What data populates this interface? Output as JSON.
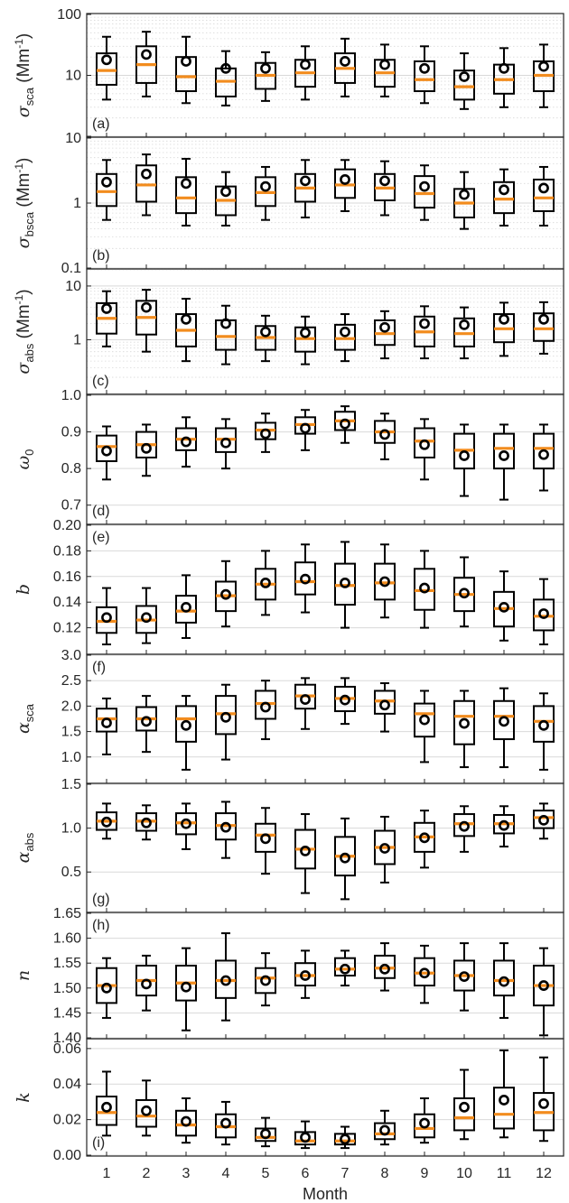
{
  "chart_data": {
    "type": "box",
    "xlabel": "Month",
    "x": [
      1,
      2,
      3,
      4,
      5,
      6,
      7,
      8,
      9,
      10,
      11,
      12
    ],
    "colors": {
      "median": "#f28c1e",
      "box": "#000000",
      "grid": "#d9d9d9"
    },
    "panels": [
      {
        "label": "(a)",
        "ylabel": "σsca (Mm-1)",
        "ylabel_main": "σ",
        "ylabel_sub": "sca",
        "ylabel_unit": " (Mm",
        "ylabel_sup": "-1",
        "ylabel_close": ")",
        "scale": "log",
        "ylim": [
          1,
          100
        ],
        "yticks": [
          1,
          10,
          100
        ],
        "ytick_labels": [
          "",
          "10",
          "100"
        ],
        "whisker_low": [
          4,
          4.5,
          3.5,
          3.2,
          3.8,
          4,
          4.5,
          4.5,
          3.5,
          2.8,
          3,
          3
        ],
        "q1": [
          7,
          7.5,
          5.5,
          4.5,
          6,
          6.5,
          7.5,
          6.5,
          5.5,
          4,
          5,
          5.5
        ],
        "median": [
          12,
          15,
          9.5,
          8,
          10,
          11,
          13,
          11,
          8.5,
          6.5,
          8.5,
          10
        ],
        "q3": [
          23,
          30,
          20,
          13,
          16,
          18,
          23,
          18,
          17,
          12,
          15,
          17
        ],
        "whisker_high": [
          43,
          52,
          43,
          25,
          24,
          30,
          40,
          32,
          30,
          23,
          28,
          32
        ],
        "mean": [
          18,
          22,
          17,
          13,
          13,
          15,
          17,
          15,
          13,
          9.5,
          13,
          14
        ]
      },
      {
        "label": "(b)",
        "ylabel": "σbsca (Mm-1)",
        "ylabel_main": "σ",
        "ylabel_sub": "bsca",
        "ylabel_unit": " (Mm",
        "ylabel_sup": "-1",
        "ylabel_close": ")",
        "scale": "log",
        "ylim": [
          0.1,
          10
        ],
        "yticks": [
          0.1,
          1,
          10
        ],
        "ytick_labels": [
          "0.1",
          "1",
          "10"
        ],
        "whisker_low": [
          0.55,
          0.65,
          0.45,
          0.45,
          0.55,
          0.6,
          0.75,
          0.65,
          0.55,
          0.4,
          0.45,
          0.45
        ],
        "q1": [
          0.9,
          1.05,
          0.7,
          0.65,
          0.9,
          1.05,
          1.2,
          1.1,
          0.85,
          0.6,
          0.7,
          0.75
        ],
        "median": [
          1.5,
          1.9,
          1.2,
          1.1,
          1.45,
          1.7,
          1.9,
          1.7,
          1.4,
          1.0,
          1.15,
          1.2
        ],
        "q3": [
          2.8,
          3.8,
          2.5,
          1.8,
          2.5,
          2.8,
          3.3,
          2.8,
          2.6,
          1.65,
          2.1,
          2.3
        ],
        "whisker_high": [
          4.6,
          5.6,
          4.8,
          3.0,
          3.6,
          4.6,
          4.6,
          4.4,
          3.8,
          3.0,
          3.3,
          3.6
        ],
        "mean": [
          2.1,
          2.8,
          2.0,
          1.5,
          1.8,
          2.2,
          2.3,
          2.2,
          1.8,
          1.35,
          1.6,
          1.7
        ]
      },
      {
        "label": "(c)",
        "ylabel": "σabs (Mm-1)",
        "ylabel_main": "σ",
        "ylabel_sub": "abs",
        "ylabel_unit": " (Mm",
        "ylabel_sup": "-1",
        "ylabel_close": ")",
        "scale": "log",
        "ylim": [
          0.1,
          20
        ],
        "yticks": [
          1,
          10
        ],
        "ytick_labels": [
          "1",
          "10"
        ],
        "whisker_low": [
          0.75,
          0.6,
          0.4,
          0.35,
          0.4,
          0.35,
          0.4,
          0.45,
          0.45,
          0.45,
          0.5,
          0.55
        ],
        "q1": [
          1.3,
          1.25,
          0.75,
          0.65,
          0.65,
          0.6,
          0.65,
          0.8,
          0.75,
          0.75,
          0.9,
          0.95
        ],
        "median": [
          2.5,
          2.6,
          1.5,
          1.15,
          1.1,
          1.05,
          1.05,
          1.3,
          1.4,
          1.3,
          1.6,
          1.6
        ],
        "q3": [
          4.8,
          5.3,
          3.0,
          2.3,
          1.8,
          1.7,
          1.9,
          2.3,
          2.7,
          2.5,
          3.0,
          3.1
        ],
        "whisker_high": [
          8.0,
          8.5,
          5.8,
          4.3,
          2.8,
          2.7,
          3.0,
          3.4,
          4.2,
          4.0,
          4.9,
          5.0
        ],
        "mean": [
          3.8,
          4.0,
          2.4,
          2.0,
          1.4,
          1.35,
          1.4,
          1.7,
          2.0,
          1.9,
          2.4,
          2.4
        ]
      },
      {
        "label": "(d)",
        "ylabel": "ω0",
        "ylabel_main": "ω",
        "ylabel_sub": "0",
        "ylabel_unit": "",
        "ylabel_sup": "",
        "ylabel_close": "",
        "scale": "linear",
        "ylim": [
          0.65,
          1.0
        ],
        "yticks": [
          0.7,
          0.8,
          0.9,
          1.0
        ],
        "ytick_labels": [
          "0.7",
          "0.8",
          "0.9",
          "1.0"
        ],
        "whisker_low": [
          0.77,
          0.78,
          0.805,
          0.8,
          0.845,
          0.85,
          0.87,
          0.825,
          0.77,
          0.725,
          0.715,
          0.74
        ],
        "q1": [
          0.82,
          0.83,
          0.85,
          0.845,
          0.88,
          0.895,
          0.905,
          0.87,
          0.83,
          0.8,
          0.8,
          0.8
        ],
        "median": [
          0.86,
          0.865,
          0.88,
          0.88,
          0.905,
          0.92,
          0.93,
          0.9,
          0.875,
          0.85,
          0.855,
          0.855
        ],
        "q3": [
          0.89,
          0.9,
          0.91,
          0.91,
          0.925,
          0.94,
          0.955,
          0.93,
          0.91,
          0.895,
          0.895,
          0.895
        ],
        "whisker_high": [
          0.915,
          0.92,
          0.94,
          0.935,
          0.95,
          0.96,
          0.97,
          0.95,
          0.935,
          0.92,
          0.92,
          0.92
        ],
        "mean": [
          0.848,
          0.855,
          0.873,
          0.87,
          0.895,
          0.91,
          0.922,
          0.893,
          0.865,
          0.835,
          0.835,
          0.838
        ]
      },
      {
        "label": "(e)",
        "ylabel": "b",
        "ylabel_main": "b",
        "ylabel_sub": "",
        "ylabel_unit": "",
        "ylabel_sup": "",
        "ylabel_close": "",
        "scale": "linear",
        "ylim": [
          0.1,
          0.2
        ],
        "yticks": [
          0.12,
          0.14,
          0.16,
          0.18,
          0.2
        ],
        "ytick_labels": [
          "0.12",
          "0.14",
          "0.16",
          "0.18",
          "0.20"
        ],
        "whisker_low": [
          0.107,
          0.108,
          0.112,
          0.121,
          0.13,
          0.132,
          0.12,
          0.128,
          0.12,
          0.121,
          0.11,
          0.107
        ],
        "q1": [
          0.116,
          0.116,
          0.124,
          0.133,
          0.142,
          0.146,
          0.138,
          0.142,
          0.134,
          0.133,
          0.121,
          0.118
        ],
        "median": [
          0.125,
          0.126,
          0.133,
          0.145,
          0.154,
          0.156,
          0.153,
          0.155,
          0.149,
          0.146,
          0.135,
          0.129
        ],
        "q3": [
          0.136,
          0.137,
          0.145,
          0.156,
          0.166,
          0.171,
          0.17,
          0.17,
          0.166,
          0.159,
          0.148,
          0.142
        ],
        "whisker_high": [
          0.151,
          0.151,
          0.161,
          0.172,
          0.18,
          0.185,
          0.187,
          0.185,
          0.18,
          0.175,
          0.164,
          0.158
        ],
        "mean": [
          0.128,
          0.128,
          0.136,
          0.146,
          0.155,
          0.158,
          0.155,
          0.156,
          0.151,
          0.147,
          0.136,
          0.131
        ]
      },
      {
        "label": "(f)",
        "ylabel": "αsca",
        "ylabel_main": "α",
        "ylabel_sub": "sca",
        "ylabel_unit": "",
        "ylabel_sup": "",
        "ylabel_close": "",
        "scale": "linear",
        "ylim": [
          0.5,
          3.0
        ],
        "yticks": [
          1.0,
          1.5,
          2.0,
          2.5,
          3.0
        ],
        "ytick_labels": [
          "1.0",
          "1.5",
          "2.0",
          "2.5",
          "3.0"
        ],
        "whisker_low": [
          1.05,
          1.1,
          0.75,
          0.95,
          1.35,
          1.55,
          1.65,
          1.5,
          0.9,
          0.8,
          0.8,
          0.75
        ],
        "q1": [
          1.5,
          1.52,
          1.3,
          1.45,
          1.75,
          1.95,
          1.9,
          1.85,
          1.4,
          1.25,
          1.35,
          1.3
        ],
        "median": [
          1.75,
          1.75,
          1.75,
          1.85,
          2.05,
          2.2,
          2.15,
          2.1,
          1.85,
          1.8,
          1.8,
          1.7
        ],
        "q3": [
          1.95,
          1.98,
          2.0,
          2.2,
          2.3,
          2.42,
          2.38,
          2.3,
          2.05,
          2.1,
          2.1,
          2.0
        ],
        "whisker_high": [
          2.15,
          2.2,
          2.2,
          2.42,
          2.5,
          2.55,
          2.55,
          2.45,
          2.3,
          2.3,
          2.35,
          2.25
        ],
        "mean": [
          1.67,
          1.7,
          1.62,
          1.78,
          1.98,
          2.13,
          2.12,
          2.02,
          1.73,
          1.66,
          1.7,
          1.62
        ]
      },
      {
        "label": "(g)",
        "ylabel": "αabs",
        "ylabel_main": "α",
        "ylabel_sub": "abs",
        "ylabel_unit": "",
        "ylabel_sup": "",
        "ylabel_close": "",
        "scale": "linear",
        "ylim": [
          0.05,
          1.5
        ],
        "yticks": [
          0.5,
          1.0,
          1.5
        ],
        "ytick_labels": [
          "0.5",
          "1.0",
          "1.5"
        ],
        "whisker_low": [
          0.88,
          0.87,
          0.76,
          0.66,
          0.48,
          0.26,
          0.19,
          0.38,
          0.55,
          0.73,
          0.79,
          0.88
        ],
        "q1": [
          0.98,
          0.97,
          0.93,
          0.87,
          0.73,
          0.54,
          0.46,
          0.59,
          0.73,
          0.91,
          0.94,
          1.0
        ],
        "median": [
          1.08,
          1.08,
          1.06,
          1.03,
          0.92,
          0.76,
          0.68,
          0.78,
          0.9,
          1.05,
          1.05,
          1.12
        ],
        "q3": [
          1.18,
          1.17,
          1.17,
          1.17,
          1.05,
          0.98,
          0.9,
          0.97,
          1.06,
          1.16,
          1.15,
          1.2
        ],
        "whisker_high": [
          1.28,
          1.26,
          1.28,
          1.3,
          1.23,
          1.16,
          1.11,
          1.13,
          1.2,
          1.25,
          1.25,
          1.28
        ],
        "mean": [
          1.07,
          1.06,
          1.05,
          1.01,
          0.88,
          0.74,
          0.66,
          0.77,
          0.89,
          1.02,
          1.03,
          1.09
        ]
      },
      {
        "label": "(h)",
        "ylabel": "n",
        "ylabel_main": "n",
        "ylabel_sub": "",
        "ylabel_unit": "",
        "ylabel_sup": "",
        "ylabel_close": "",
        "scale": "linear",
        "ylim": [
          1.4,
          1.65
        ],
        "yticks": [
          1.4,
          1.45,
          1.5,
          1.55,
          1.6,
          1.65
        ],
        "ytick_labels": [
          "1.40",
          "1.45",
          "1.50",
          "1.55",
          "1.60",
          "1.65"
        ],
        "whisker_low": [
          1.44,
          1.455,
          1.415,
          1.435,
          1.465,
          1.48,
          1.505,
          1.495,
          1.47,
          1.455,
          1.44,
          1.405
        ],
        "q1": [
          1.47,
          1.485,
          1.475,
          1.48,
          1.49,
          1.505,
          1.525,
          1.52,
          1.505,
          1.495,
          1.485,
          1.465
        ],
        "median": [
          1.505,
          1.515,
          1.51,
          1.515,
          1.52,
          1.525,
          1.538,
          1.54,
          1.53,
          1.525,
          1.515,
          1.505
        ],
        "q3": [
          1.54,
          1.545,
          1.545,
          1.555,
          1.54,
          1.55,
          1.56,
          1.565,
          1.56,
          1.555,
          1.555,
          1.545
        ],
        "whisker_high": [
          1.56,
          1.565,
          1.58,
          1.61,
          1.57,
          1.575,
          1.575,
          1.59,
          1.585,
          1.59,
          1.59,
          1.58
        ],
        "mean": [
          1.5,
          1.508,
          1.502,
          1.515,
          1.515,
          1.525,
          1.538,
          1.538,
          1.53,
          1.523,
          1.513,
          1.505
        ]
      },
      {
        "label": "(i)",
        "ylabel": "k",
        "ylabel_main": "k",
        "ylabel_sub": "",
        "ylabel_unit": "",
        "ylabel_sup": "",
        "ylabel_close": "",
        "scale": "linear",
        "ylim": [
          0,
          0.065
        ],
        "yticks": [
          0,
          0.02,
          0.04,
          0.06
        ],
        "ytick_labels": [
          "0.00",
          "0.02",
          "0.04",
          "0.06"
        ],
        "whisker_low": [
          0.011,
          0.011,
          0.007,
          0.006,
          0.005,
          0.004,
          0.004,
          0.006,
          0.007,
          0.009,
          0.01,
          0.008
        ],
        "q1": [
          0.017,
          0.016,
          0.011,
          0.01,
          0.008,
          0.006,
          0.006,
          0.009,
          0.01,
          0.014,
          0.015,
          0.014
        ],
        "median": [
          0.024,
          0.022,
          0.017,
          0.016,
          0.01,
          0.008,
          0.008,
          0.012,
          0.015,
          0.021,
          0.023,
          0.024
        ],
        "q3": [
          0.033,
          0.031,
          0.025,
          0.023,
          0.015,
          0.013,
          0.012,
          0.018,
          0.023,
          0.032,
          0.038,
          0.035
        ],
        "whisker_high": [
          0.047,
          0.042,
          0.032,
          0.03,
          0.021,
          0.019,
          0.016,
          0.025,
          0.032,
          0.048,
          0.059,
          0.055
        ],
        "mean": [
          0.027,
          0.025,
          0.019,
          0.018,
          0.012,
          0.01,
          0.009,
          0.014,
          0.018,
          0.027,
          0.031,
          0.029
        ]
      }
    ]
  }
}
